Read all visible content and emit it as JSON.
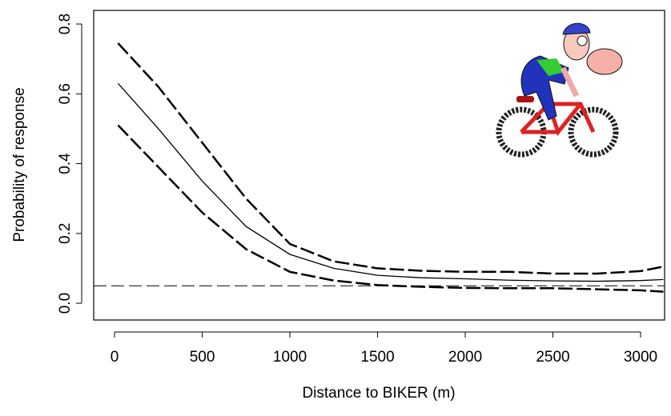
{
  "chart_data": {
    "type": "line",
    "xlabel": "Distance to BIKER (m)",
    "ylabel": "Probability of response",
    "x": [
      20,
      250,
      500,
      750,
      1000,
      1250,
      1500,
      1750,
      2000,
      2250,
      2500,
      2750,
      3000,
      3130
    ],
    "series": [
      {
        "color": "#000000",
        "style": "solid",
        "values": [
          0.63,
          0.5,
          0.35,
          0.22,
          0.14,
          0.1,
          0.08,
          0.073,
          0.07,
          0.066,
          0.064,
          0.063,
          0.065,
          0.068
        ]
      },
      {
        "color": "#000000",
        "style": "dashed",
        "values": [
          0.745,
          0.62,
          0.46,
          0.3,
          0.17,
          0.12,
          0.1,
          0.093,
          0.09,
          0.09,
          0.085,
          0.085,
          0.092,
          0.105
        ]
      },
      {
        "color": "#000000",
        "style": "dashed",
        "values": [
          0.51,
          0.39,
          0.26,
          0.155,
          0.09,
          0.065,
          0.052,
          0.047,
          0.044,
          0.043,
          0.043,
          0.04,
          0.037,
          0.033
        ]
      }
    ],
    "reference_line": 0.05,
    "xlim": [
      -119,
      3137
    ],
    "ylim": [
      -0.048,
      0.839
    ],
    "xticks": [
      0,
      500,
      1000,
      1500,
      2000,
      2500,
      3000
    ],
    "yticks": [
      {
        "value": 0,
        "label": "0.0"
      },
      0.2,
      0.4,
      0.6,
      0.8
    ],
    "grid": false
  }
}
